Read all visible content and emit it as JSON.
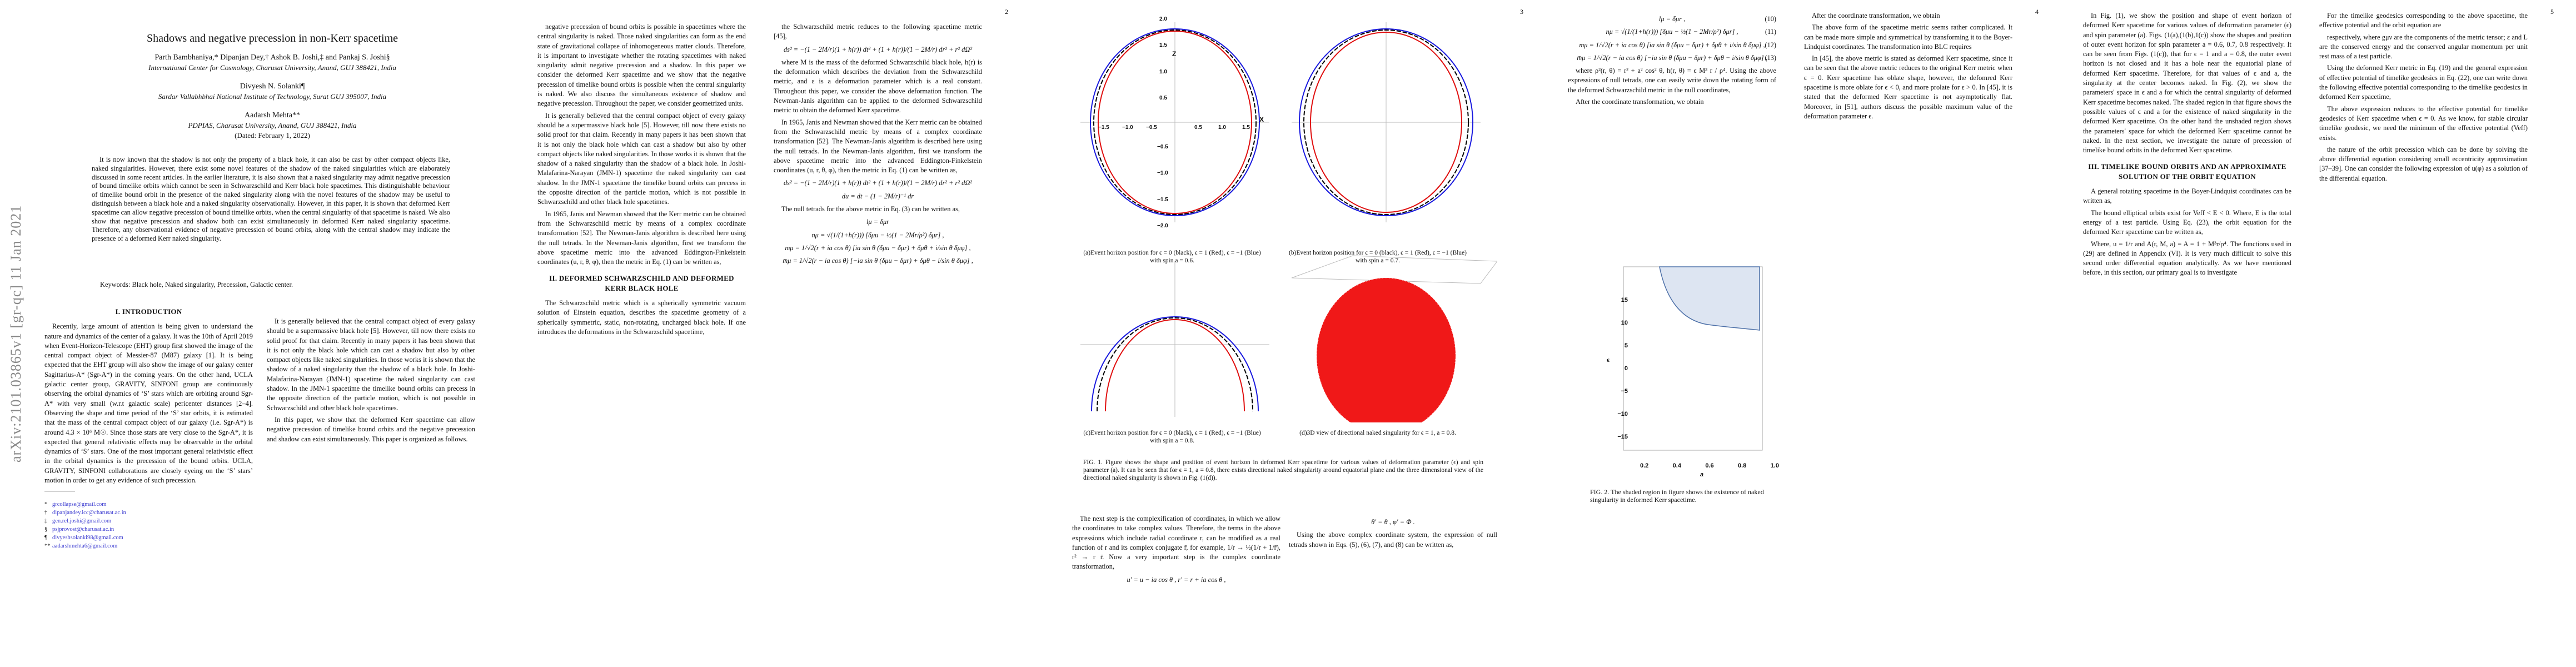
{
  "arxiv_stamp": "arXiv:2101.03865v1  [gr-qc]  11 Jan 2021",
  "page_numbers": [
    "2",
    "3",
    "4",
    "5"
  ],
  "title": "Shadows and negative precession in non-Kerr spacetime",
  "authors_1": "Parth Bambhaniya,* Dipanjan Dey,† Ashok B. Joshi,‡ and Pankaj S. Joshi§",
  "affiliation_1": "International Center for Cosmology, Charusat University, Anand, GUJ 388421, India",
  "authors_2": "Divyesh N. Solanki¶",
  "affiliation_2": "Sardar Vallabhbhai National Institute of Technology, Surat GUJ 395007, India",
  "authors_3": "Aadarsh Mehta**",
  "affiliation_3": "PDPIAS, Charusat University, Anand, GUJ 388421, India",
  "dated": "(Dated: February 1, 2022)",
  "abstract": "It is now known that the shadow is not only the property of a black hole, it can also be cast by other compact objects like, naked singularities. However, there exist some novel features of the shadow of the naked singularities which are elaborately discussed in some recent articles. In the earlier literature, it is also shown that a naked singularity may admit negative precession of bound timelike orbits which cannot be seen in Schwarzschild and Kerr black hole spacetimes. This distinguishable behaviour of timelike bound orbit in the presence of the naked singularity along with the novel features of the shadow may be useful to distinguish between a black hole and a naked singularity observationally. However, in this paper, it is shown that deformed Kerr spacetime can allow negative precession of bound timelike orbits, when the central singularity of that spacetime is naked. We also show that negative precession and shadow both can exist simultaneously in deformed Kerr naked singularity spacetime. Therefore, any observational evidence of negative precession of bound orbits, along with the central shadow may indicate the presence of a deformed Kerr naked singularity.",
  "keywords": "Keywords: Black hole, Naked singularity, Precession, Galactic center.",
  "sections": {
    "intro": "I.   INTRODUCTION",
    "sec2": "II.   DEFORMED SCHWARZSCHILD AND DEFORMED KERR BLACK HOLE",
    "sec3": "III.   TIMELIKE BOUND ORBITS AND AN APPROXIMATE SOLUTION OF THE ORBIT EQUATION"
  },
  "p1": {
    "intro_para": "Recently, large amount of attention is being given to understand the nature and dynamics of the center of a galaxy. It was the 10th of April 2019 when Event-Horizon-Telescope (EHT) group first showed the image of the central compact object of Messier-87 (M87) galaxy [1]. It is being expected that the EHT group will also show the image of our galaxy center Sagittarius-A* (Sgr-A*) in the coming years. On the other hand, UCLA galactic center group, GRAVITY, SINFONI group are continuously observing the orbital dynamics of ‘S’ stars which are orbiting around Sgr-A* with very small (w.r.t galactic scale) pericenter distances [2–4]. Observing the shape and time period of the ‘S’ star orbits, it is estimated that the mass of the central compact object of our galaxy (i.e. Sgr-A*) is around 4.3 × 10⁶ M☉. Since those stars are very close to the Sgr-A*, it is expected that general relativistic effects may be observable in the orbital dynamics of ‘S’ stars. One of the most important general relativistic effect in the orbital dynamics is the precession of the bound orbits. UCLA, GRAVITY, SINFONI collaborations are closely eyeing on the ‘S’ stars’ motion in order to get any evidence of such precession.",
    "right_para_1": "It is generally believed that the central compact object of every galaxy should be a supermassive black hole [5]. However, till now there exists no solid proof for that claim. Recently in many papers it has been shown that it is not only the black hole which can cast a shadow but also by other compact objects like naked singularities. In those works it is shown that the shadow of a naked singularity than the shadow of a black hole. In Joshi-Malafarina-Narayan (JMN-1) spacetime the naked singularity can cast shadow. In the JMN-1 spacetime the timelike bound orbits can precess in the opposite direction of the particle motion, which is not possible in Schwarzschild and other black hole spacetimes.",
    "right_para_2": "In this paper, we show that the deformed Kerr spacetime can allow negative precession of timelike bound orbits and the negative precession and shadow can exist simultaneously. This paper is organized as follows."
  },
  "footnotes": [
    {
      "mark": "*",
      "email": "grcollapse@gmail.com"
    },
    {
      "mark": "†",
      "email": "dipanjandey.icc@charusat.ac.in"
    },
    {
      "mark": "‡",
      "email": "gen.rel.joshi@gmail.com"
    },
    {
      "mark": "§",
      "email": "psjprovost@charusat.ac.in"
    },
    {
      "mark": "¶",
      "email": "divyeshsolanki98@gmail.com"
    },
    {
      "mark": "**",
      "email": "aadarshmehta6@gmail.com"
    }
  ],
  "p2": {
    "left_text": "negative precession of bound orbits is possible in spacetimes where the central singularity is naked. Those naked singularities can form as the end state of gravitational collapse of inhomogeneous matter clouds. Therefore, it is important to investigate whether the rotating spacetimes with naked singularity admit negative precession and a shadow. In this paper we consider the deformed Kerr spacetime and we show that the negative precession of timelike bound orbits is possible when the central singularity is naked. We also discuss the simultaneous existence of shadow and negative precession. Throughout the paper, we consider geometrized units.",
    "sec2_para": "The Schwarzschild metric which is a spherically symmetric vacuum solution of Einstein equation, describes the spacetime geometry of a spherically symmetric, static, non-rotating, uncharged black hole. If one introduces the deformations in the Schwarzschild spacetime,",
    "right_text_1": "the Schwarzschild metric reduces to the following spacetime metric [45],",
    "right_text_2": "where M is the mass of the deformed Schwarzschild black hole, h(r) is the deformation which describes the deviation from the Schwarzschild metric, and ε is a deformation parameter which is a real constant. Throughout this paper, we consider the above deformation function. The Newman-Janis algorithm can be applied to the deformed Schwarzschild metric to obtain the deformed Kerr spacetime.",
    "right_text_3": "In 1965, Janis and Newman showed that the Kerr metric can be obtained from the Schwarzschild metric by means of a complex coordinate transformation [52]. The Newman-Janis algorithm is described here using the null tetrads. In the Newman-Janis algorithm, first we transform the above spacetime metric into the advanced Eddington-Finkelstein coordinates (u, r, θ, φ), then the metric in Eq. (1) can be written as,",
    "eq1": "ds² = −(1 − 2M/r)(1 + h(r)) dt² + (1 + h(r))/(1 − 2M/r) dr² + r² dΩ²",
    "eq4": "du = dt − (1 − 2M/r)⁻¹ dr",
    "eq5": "lμ = δμr",
    "right_text_4": "The null tetrads for the above metric in Eq. (3) can be written as,"
  },
  "p3": {
    "fig_subcaptions": [
      "(a)Event horizon position for ϵ = 0 (black), ϵ = 1 (Red), ϵ = −1 (Blue) with spin a = 0.6.",
      "(b)Event horizon position for ϵ = 0 (black), ϵ = 1 (Red), ϵ = −1 (Blue) with spin a = 0.7.",
      "(c)Event horizon position for ϵ = 0 (black), ϵ = 1 (Red), ϵ = −1 (Blue) with spin a = 0.8.",
      "(d)3D view of directional naked singularity for ϵ = 1, a = 0.8."
    ],
    "fig1_caption": "FIG. 1. Figure shows the shape and position of event horizon in deformed Kerr spacetime for various values of deformation parameter (ϵ) and spin parameter (a). It can be seen that for ϵ = 1, a = 0.8, there exists directional naked singularity around equatorial plane and the three dimensional view of the directional naked singularity is shown in Fig. (1(d)).",
    "axis_z": "Z",
    "axis_x": "X",
    "ticks": [
      "−2.0",
      "−1.5",
      "−1.0",
      "−0.5",
      "0.5",
      "1.0",
      "1.5",
      "2.0"
    ],
    "left_text": "The next step is the complexification of coordinates, in which we allow the coordinates to take complex values. Therefore, the terms in the above expressions which include radial coordinate r, can be modified as a real function of r and its complex conjugate r̄, for example, 1/r → ½(1/r + 1/r̄), r² → r r̄. Now a very important step is the complex coordinate transformation,",
    "eq_left": "u′ = u − ia cos θ , r′ = r + ia cos θ ,",
    "eq_right": "θ′ = θ , φ′ = Φ .",
    "right_text": "Using the above complex coordinate system, the expression of null tetrads shown in Eqs. (5), (6), (7), and (8) can be written as,"
  },
  "p4": {
    "eqs_top": [
      "lμ = δμr ,",
      "nμ = √(1/(1+h(r))) [δμu − ½(1 − 2Mr/ρ²) δμr] ,",
      "mμ = 1/√2(r + ia cos θ) [ia sin θ (δμu − δμr) + δμθ + i/sin θ δμφ] ,",
      "m̄μ = 1/√2(r − ia cos θ) [−ia sin θ (δμu − δμr) + δμθ − i/sin θ δμφ] ,"
    ],
    "eq_nums": [
      "(10)",
      "(11)",
      "(12)",
      "(13)"
    ],
    "text_1": "where ρ²(r, θ) = r² + a² cos² θ, h(r, θ) = ϵ M³ r / ρ⁴. Using the above expressions of null tetrads, one can easily write down the rotating form of the deformed Schwarzschild metric in the null coordinates,",
    "text_2": "After the coordinate transformation, we obtain",
    "fig2_caption": "FIG. 2. The shaded region in figure shows the existence of naked singularity in deformed Kerr spacetime.",
    "fig2_ylabel": "ϵ",
    "fig2_xlabel": "a",
    "fig2_yticks": [
      "15",
      "10",
      "5",
      "0",
      "−5",
      "−10",
      "−15"
    ],
    "fig2_xticks": [
      "0.2",
      "0.4",
      "0.6",
      "0.8",
      "1.0"
    ],
    "right_text_1": "In [45], the above metric is stated as deformed Kerr spacetime, since it can be seen that the above metric reduces to the original Kerr metric when ϵ = 0. Kerr spacetime has oblate shape, however, the defomred Kerr spacetime is more oblate for ϵ < 0, and more prolate for ϵ > 0. In [45], it is stated that the deformed Kerr spacetime is not asymptotically flat. Moreover, in [51], authors discuss the possible maximum value of the deformation parameter ϵ.",
    "right_text_2": "The above form of the spacetime metric seems rather complicated. It can be made more simple and symmetrical by transforming it to the Boyer-Lindquist coordinates. The transformation into BLC requires",
    "left_text_top": "In Fig. (1), we show the position and shape of event horizon of deformed Kerr spacetime for various values of deformation parameter (ϵ) and spin parameter (a). Figs. (1(a),(1(b),1(c)) show the shapes and position of outer event horizon for spin parameter a = 0.6, 0.7, 0.8 respectively. It can be seen from Figs. (1(c)), that for ϵ = 1 and a = 0.8, the outer event horizon is not closed and it has a hole near the equatorial plane of deformed Kerr spacetime. Therefore, for that values of ϵ and a, the singularity at the center becomes naked. In Fig. (2), we show the parameters' space in ϵ and a for which the central singularity of deformed Kerr spacetime becomes naked. The shaded region in that figure shows the possible values of ϵ and a for the existence of naked singularity in the deformed Kerr spacetime. On the other hand the unshaded region shows the parameters' space for which the deformed Kerr spacetime cannot be naked. In the next section, we investigate the nature of precession of timelike bound orbits in the deformed Kerr spacetime."
  },
  "p5": {
    "text_1": "A general rotating spacetime in the Boyer-Lindquist coordinates can be written as,",
    "text_2": "The bound elliptical orbits exist for Veff < E < 0. Where, E is the total energy of a test particle. Using Eq. (23), the orbit equation for the deformed Kerr spacetime can be written as,",
    "text_3": "Where, u = 1/r and A(r, M, a) = A = 1 + M³r/ρ⁴. The functions used in (29) are defined in Appendix (VI). It is very much difficult to solve this second order differential equation analytically. As we have mentioned before, in this section, our primary goal is to investigate",
    "right_text_1": "For the timelike geodesics corresponding to the above spacetime, the effective potential and the orbit equation are",
    "right_text_2": "respectively, where gμν are the components of the metric tensor; ε and L are the conserved energy and the conserved angular momentum per unit rest mass of a test particle.",
    "right_text_3": "Using the deformed Kerr metric in Eq. (19) and the general expression of effective potential of timelike geodesics in Eq. (22), one can write down the following effective potential corresponding to the timelike geodesics in deformed Kerr spacetime,",
    "right_text_4": "The above expression reduces to the effective potential for timelike geodesics of Kerr spacetime when ϵ = 0. As we know, for stable circular timelike geodesic, we need the minimum of the effective potential (Veff) exists.",
    "right_text_5": "the nature of the orbit precession which can be done by solving the above differential equation considering small eccentricity approximation [37–39]. One can consider the following expression of u(φ) as a solution of the differential equation."
  }
}
